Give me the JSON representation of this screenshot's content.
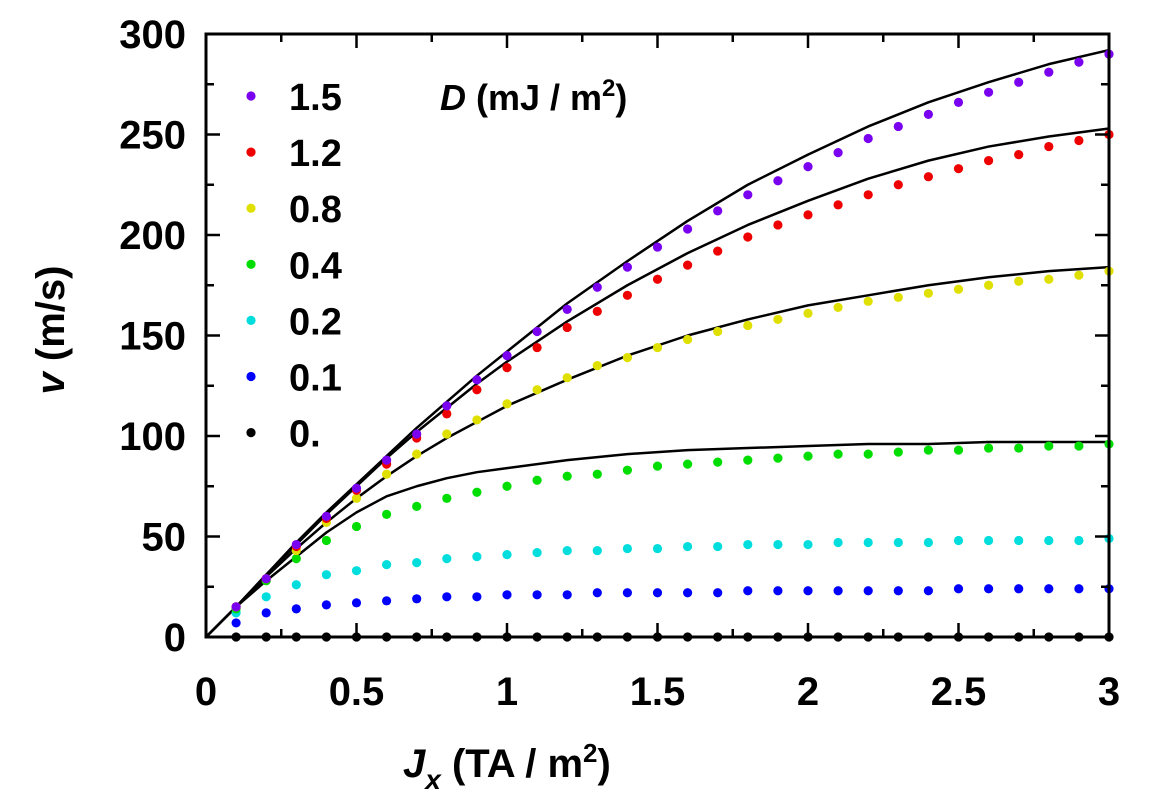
{
  "chart_data": {
    "type": "scatter",
    "title": "",
    "xlabel": {
      "main": "J",
      "sub": "x",
      "unit": " (TA / m",
      "sup": "2",
      "close": ")"
    },
    "ylabel": {
      "main": "v",
      "unit": " (m/s)"
    },
    "xlim": [
      0,
      3
    ],
    "ylim": [
      0,
      300
    ],
    "x_ticks": [
      0,
      0.5,
      1,
      1.5,
      2,
      2.5,
      3
    ],
    "x_tick_labels": [
      "0",
      "0.5",
      "1",
      "1.5",
      "2",
      "2.5",
      "3"
    ],
    "x_minor_step": 0.25,
    "y_ticks": [
      0,
      50,
      100,
      150,
      200,
      250,
      300
    ],
    "y_tick_labels": [
      "0",
      "50",
      "100",
      "150",
      "200",
      "250",
      "300"
    ],
    "y_minor_step": 25,
    "grid": false,
    "legend": {
      "placement": "top-left",
      "title": {
        "main": "D",
        "unit": " (mJ / m",
        "sup": "2",
        "close": ")"
      }
    },
    "x": [
      0.1,
      0.2,
      0.3,
      0.4,
      0.5,
      0.6,
      0.7,
      0.8,
      0.9,
      1.0,
      1.1,
      1.2,
      1.3,
      1.4,
      1.5,
      1.6,
      1.7,
      1.8,
      1.9,
      2.0,
      2.1,
      2.2,
      2.3,
      2.4,
      2.5,
      2.6,
      2.7,
      2.8,
      2.9,
      3.0
    ],
    "series": [
      {
        "name": "1.5",
        "color": "#7a00f0",
        "values": [
          15,
          29,
          46,
          60,
          74,
          88,
          101,
          115,
          128,
          140,
          152,
          163,
          174,
          184,
          194,
          203,
          212,
          220,
          227,
          234,
          241,
          248,
          254,
          260,
          266,
          271,
          276,
          281,
          286,
          290
        ]
      },
      {
        "name": "1.2",
        "color": "#ee0000",
        "values": [
          15,
          29,
          45,
          59,
          73,
          86,
          99,
          111,
          123,
          134,
          144,
          154,
          162,
          170,
          178,
          185,
          192,
          199,
          205,
          210,
          215,
          220,
          225,
          229,
          233,
          237,
          240,
          244,
          247,
          250
        ]
      },
      {
        "name": "0.8",
        "color": "#e0e000",
        "values": [
          15,
          29,
          43,
          57,
          69,
          81,
          91,
          101,
          108,
          116,
          123,
          129,
          135,
          139,
          144,
          148,
          152,
          155,
          158,
          161,
          164,
          167,
          169,
          171,
          173,
          175,
          177,
          178,
          180,
          182
        ]
      },
      {
        "name": "0.4",
        "color": "#00dd00",
        "values": [
          14,
          28,
          39,
          48,
          55,
          61,
          65,
          69,
          72,
          75,
          78,
          80,
          81,
          83,
          85,
          86,
          87,
          88,
          89,
          90,
          91,
          91,
          92,
          93,
          93,
          94,
          94,
          95,
          95,
          96
        ]
      },
      {
        "name": "0.2",
        "color": "#00dddd",
        "values": [
          12,
          20,
          26,
          31,
          33,
          36,
          37,
          39,
          40,
          41,
          42,
          43,
          43,
          44,
          44,
          45,
          45,
          46,
          46,
          46,
          47,
          47,
          47,
          47,
          48,
          48,
          48,
          48,
          48,
          49
        ]
      },
      {
        "name": "0.1",
        "color": "#0000ff",
        "values": [
          7,
          12,
          14,
          16,
          17,
          18,
          19,
          20,
          20,
          21,
          21,
          21,
          22,
          22,
          22,
          22,
          22,
          23,
          23,
          23,
          23,
          23,
          23,
          23,
          24,
          24,
          24,
          24,
          24,
          24
        ]
      },
      {
        "name": "0.",
        "color": "#000000",
        "values": [
          0,
          0,
          0,
          0,
          0,
          0,
          0,
          0,
          0,
          0,
          0,
          0,
          0,
          0,
          0,
          0,
          0,
          0,
          0,
          0,
          0,
          0,
          0,
          0,
          0,
          0,
          0,
          0,
          0,
          0
        ]
      }
    ],
    "fit_curves": {
      "color": "#000000",
      "x": [
        0,
        0.1,
        0.2,
        0.3,
        0.4,
        0.5,
        0.6,
        0.7,
        0.8,
        0.9,
        1.0,
        1.2,
        1.4,
        1.6,
        1.8,
        2.0,
        2.2,
        2.4,
        2.6,
        2.8,
        3.0
      ],
      "curves": [
        {
          "name": "fit-1.5",
          "values": [
            0,
            15,
            31,
            47,
            62,
            76,
            90,
            104,
            117,
            130,
            142,
            166,
            187,
            207,
            225,
            240,
            254,
            266,
            276,
            285,
            292
          ]
        },
        {
          "name": "fit-1.2",
          "values": [
            0,
            15,
            31,
            46,
            61,
            75,
            89,
            102,
            114,
            126,
            137,
            157,
            175,
            191,
            205,
            217,
            228,
            237,
            244,
            249,
            253
          ]
        },
        {
          "name": "fit-0.8",
          "values": [
            0,
            15,
            30,
            44,
            57,
            69,
            80,
            90,
            99,
            107,
            115,
            128,
            140,
            150,
            158,
            165,
            170,
            175,
            179,
            182,
            184
          ]
        },
        {
          "name": "fit-0.4",
          "values": [
            0,
            15,
            28,
            40,
            52,
            62,
            70,
            75,
            79,
            82,
            84,
            88,
            91,
            93,
            94,
            95,
            96,
            96,
            97,
            97,
            97
          ]
        }
      ]
    }
  }
}
